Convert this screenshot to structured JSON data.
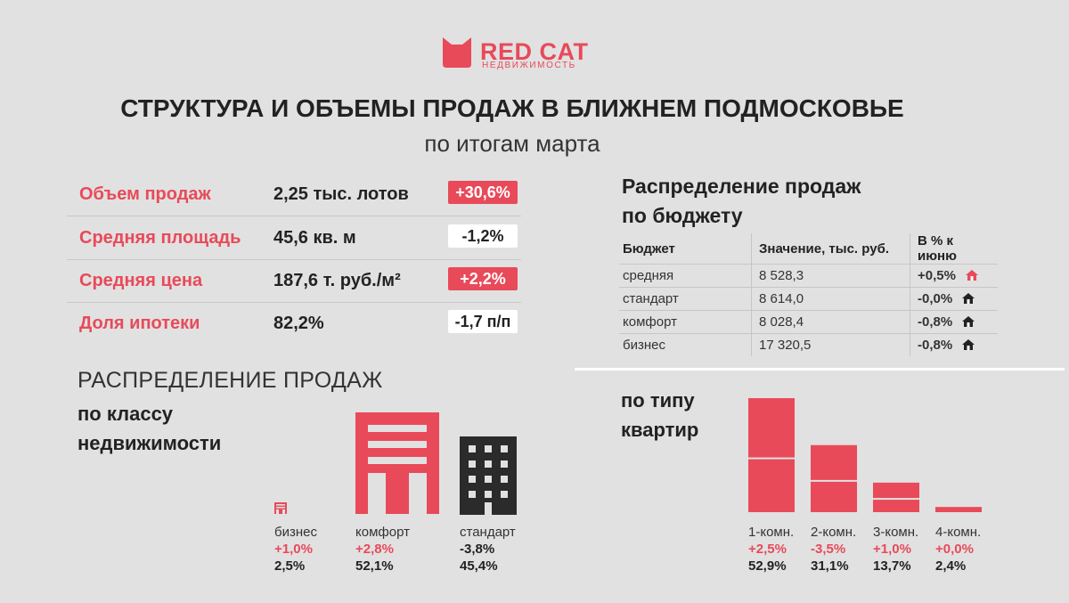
{
  "brand": {
    "name": "RED CAT",
    "sub": "НЕДВИЖИМОСТЬ",
    "color": "#e84a5a"
  },
  "title": "СТРУКТУРА И ОБЪЕМЫ ПРОДАЖ В БЛИЖНЕМ ПОДМОСКОВЬЕ",
  "subtitle": "по итогам марта",
  "kpis": [
    {
      "label": "Объем продаж",
      "value": "2,25 тыс. лотов",
      "change": "+30,6%",
      "style": "red"
    },
    {
      "label": "Средняя площадь",
      "value": "45,6 кв. м",
      "change": "-1,2%",
      "style": "white"
    },
    {
      "label": "Средняя цена",
      "value": "187,6 т. руб./м²",
      "change": "+2,2%",
      "style": "red"
    },
    {
      "label": "Доля ипотеки",
      "value": "82,2%",
      "change": "-1,7 п/п",
      "style": "white"
    }
  ],
  "budget": {
    "title_line1": "Распределение продаж",
    "title_line2": "по бюджету",
    "headers": [
      "Бюджет",
      "Значение, тыс. руб.",
      "В % к июню"
    ],
    "rows": [
      {
        "name": "средняя",
        "value": "8 528,3",
        "change": "+0,5%",
        "highlight": true
      },
      {
        "name": "стандарт",
        "value": "8 614,0",
        "change": "-0,0%",
        "highlight": false
      },
      {
        "name": "комфорт",
        "value": "8 028,4",
        "change": "-0,8%",
        "highlight": false
      },
      {
        "name": "бизнес",
        "value": "17 320,5",
        "change": "-0,8%",
        "highlight": false
      }
    ]
  },
  "class_section": {
    "title1": "РАСПРЕДЕЛЕНИЕ ПРОДАЖ",
    "title2_line1": "по классу",
    "title2_line2": "недвижимости",
    "items": [
      {
        "name": "бизнес",
        "change": "+1,0%",
        "share": "2,5%",
        "icon": "business-building-icon",
        "color": "#e84a5a",
        "share_value": 2.5
      },
      {
        "name": "комфорт",
        "change": "+2,8%",
        "share": "52,1%",
        "icon": "comfort-building-icon",
        "color": "#e84a5a",
        "share_value": 52.1
      },
      {
        "name": "стандарт",
        "change": "-3,8%",
        "share": "45,4%",
        "icon": "standard-building-icon",
        "color": "#2b2b2b",
        "share_value": 45.4
      }
    ]
  },
  "chart_data": {
    "type": "bar",
    "title": "по типу квартир",
    "categories": [
      "1-комн.",
      "2-комн.",
      "3-комн.",
      "4-комн."
    ],
    "values": [
      52.9,
      31.1,
      13.7,
      2.4
    ],
    "value_labels": [
      "52,9%",
      "31,1%",
      "13,7%",
      "2,4%"
    ],
    "changes": [
      "+2,5%",
      "-3,5%",
      "+1,0%",
      "+0,0%"
    ],
    "change_colors": [
      "#e84a5a",
      "#e84a5a",
      "#e84a5a",
      "#e84a5a"
    ],
    "bar_color": "#e84a5a",
    "ylim": [
      0,
      52.9
    ]
  }
}
